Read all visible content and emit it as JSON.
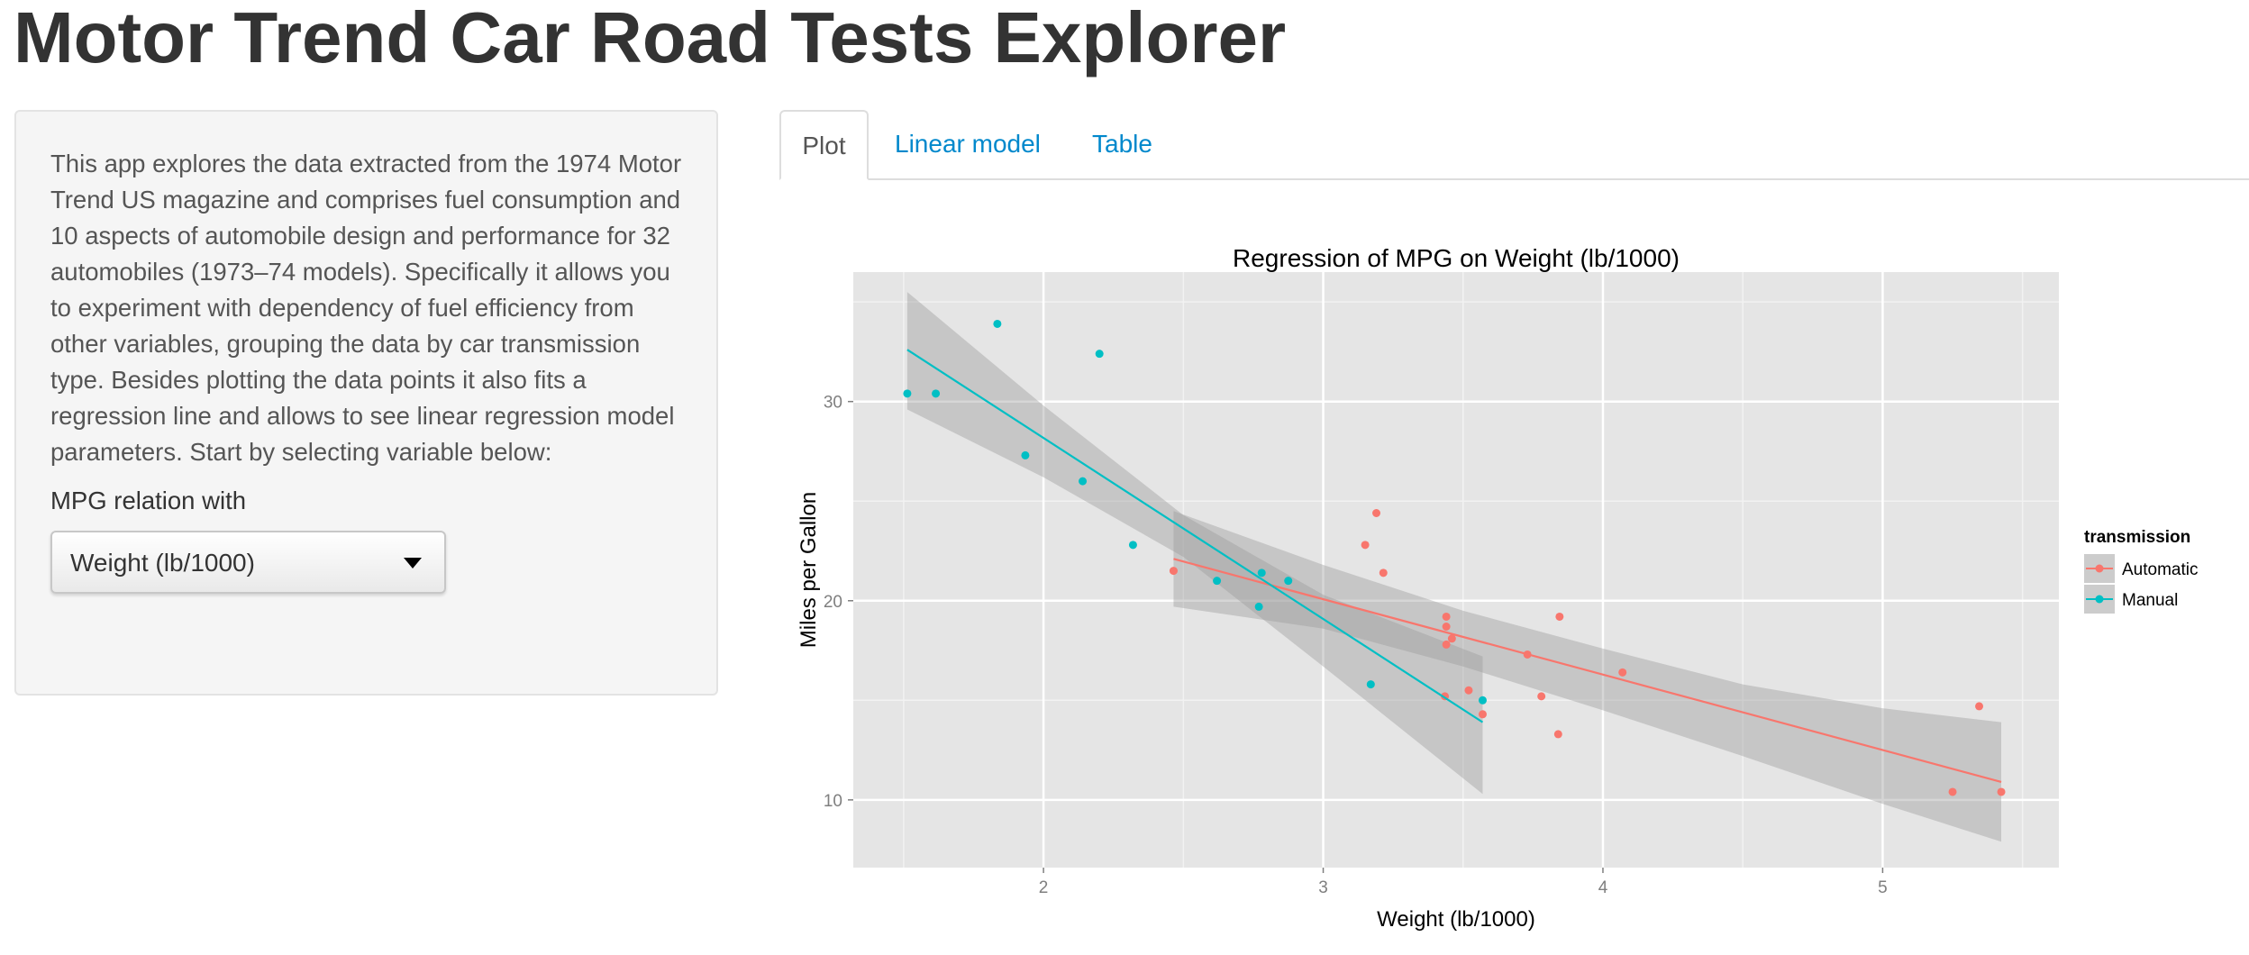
{
  "app": {
    "title": "Motor Trend Car Road Tests Explorer"
  },
  "sidebar": {
    "description": "This app explores the data extracted from the 1974 Motor Trend US magazine and comprises fuel consumption and 10 aspects of automobile design and performance for 32 automobiles (1973–74 models). Specifically it allows you to experiment with dependency of fuel efficiency from other variables, grouping the data by car transmission type. Besides plotting the data points it also fits a regression line and allows to see linear regression model parameters. Start by selecting variable below:",
    "select_label": "MPG relation with",
    "select_value": "Weight (lb/1000)"
  },
  "tabs": [
    {
      "label": "Plot",
      "active": true
    },
    {
      "label": "Linear model",
      "active": false
    },
    {
      "label": "Table",
      "active": false
    }
  ],
  "colors": {
    "automatic": "#F8766D",
    "manual": "#00BFC4",
    "panel_bg": "#E5E5E5",
    "grid": "#FFFFFF",
    "ribbon": "#999999",
    "link": "#0088cc"
  },
  "chart_data": {
    "type": "scatter",
    "title": "Regression of MPG on Weight (lb/1000)",
    "xlabel": "Weight (lb/1000)",
    "ylabel": "Miles per Gallon",
    "xlim": [
      1.32,
      5.63
    ],
    "ylim": [
      6.6,
      36.5
    ],
    "x_ticks": [
      2,
      3,
      4,
      5
    ],
    "y_ticks": [
      10,
      20,
      30
    ],
    "grid": true,
    "legend": {
      "title": "transmission",
      "position": "right",
      "entries": [
        "Automatic",
        "Manual"
      ]
    },
    "series": [
      {
        "name": "Automatic",
        "color": "#F8766D",
        "points": [
          [
            3.215,
            21.4
          ],
          [
            3.44,
            18.7
          ],
          [
            3.46,
            18.1
          ],
          [
            3.57,
            14.3
          ],
          [
            3.19,
            24.4
          ],
          [
            3.15,
            22.8
          ],
          [
            3.44,
            19.2
          ],
          [
            3.44,
            17.8
          ],
          [
            4.07,
            16.4
          ],
          [
            3.73,
            17.3
          ],
          [
            3.78,
            15.2
          ],
          [
            5.25,
            10.4
          ],
          [
            5.424,
            10.4
          ],
          [
            5.345,
            14.7
          ],
          [
            2.465,
            21.5
          ],
          [
            3.52,
            15.5
          ],
          [
            3.435,
            15.2
          ],
          [
            3.84,
            13.3
          ],
          [
            3.845,
            19.2
          ]
        ],
        "fit": {
          "x": [
            2.465,
            5.424
          ],
          "y": [
            22.1,
            10.9
          ]
        },
        "band": [
          [
            2.465,
            24.5,
            19.7
          ],
          [
            3.0,
            21.8,
            18.6
          ],
          [
            3.5,
            19.5,
            16.7
          ],
          [
            4.0,
            17.6,
            14.5
          ],
          [
            4.5,
            15.8,
            12.2
          ],
          [
            5.0,
            14.6,
            9.8
          ],
          [
            5.424,
            13.9,
            7.9
          ]
        ]
      },
      {
        "name": "Manual",
        "color": "#00BFC4",
        "points": [
          [
            2.62,
            21.0
          ],
          [
            2.875,
            21.0
          ],
          [
            2.32,
            22.8
          ],
          [
            2.2,
            32.4
          ],
          [
            1.615,
            30.4
          ],
          [
            1.835,
            33.9
          ],
          [
            1.935,
            27.3
          ],
          [
            2.14,
            26.0
          ],
          [
            1.513,
            30.4
          ],
          [
            3.17,
            15.8
          ],
          [
            2.77,
            19.7
          ],
          [
            3.57,
            15.0
          ],
          [
            2.78,
            21.4
          ]
        ],
        "fit": {
          "x": [
            1.513,
            3.57
          ],
          "y": [
            32.6,
            13.9
          ]
        },
        "band": [
          [
            1.513,
            35.5,
            29.6
          ],
          [
            2.0,
            29.8,
            26.2
          ],
          [
            2.5,
            24.3,
            22.2
          ],
          [
            3.0,
            20.3,
            16.7
          ],
          [
            3.57,
            17.2,
            10.3
          ]
        ]
      }
    ]
  }
}
